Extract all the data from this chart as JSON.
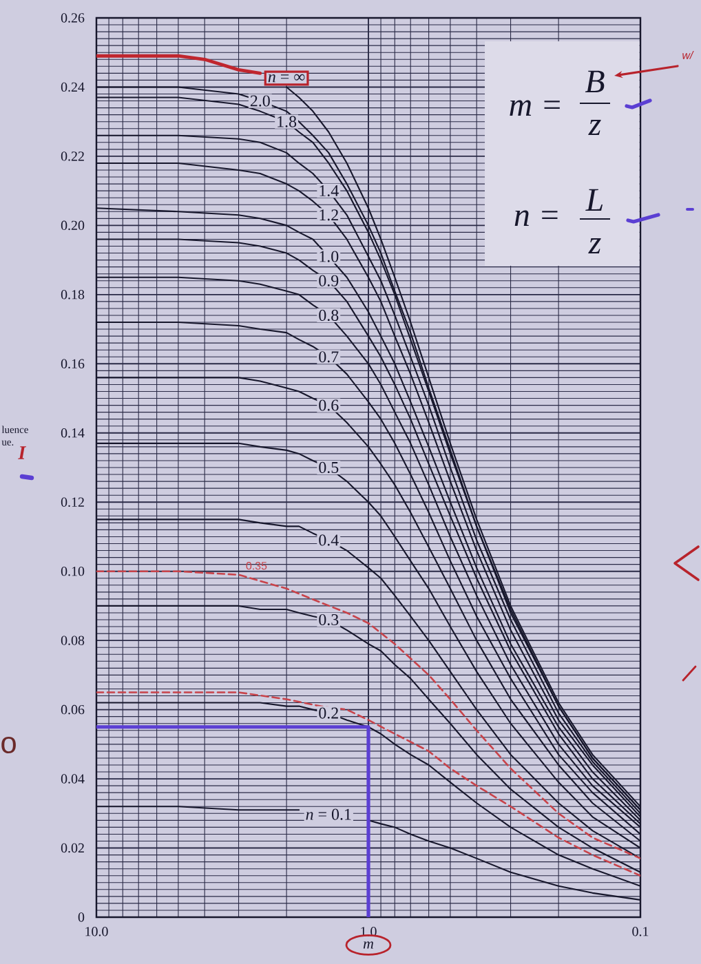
{
  "chart_data": {
    "type": "line",
    "xlabel": "m",
    "ylabel": "luence ue.",
    "x": [
      10,
      5,
      3,
      2.5,
      2,
      1.8,
      1.6,
      1.4,
      1.2,
      1.0,
      0.9,
      0.8,
      0.7,
      0.6,
      0.5,
      0.4,
      0.3,
      0.2,
      0.15,
      0.1
    ],
    "series": [
      {
        "name": "*n* = ∞",
        "color": "#17172c",
        "x": [
          2,
          1.8,
          1.6,
          1.4,
          1.2,
          1.0,
          0.9,
          0.8,
          0.7,
          0.6,
          0.5,
          0.4,
          0.3,
          0.2,
          0.15,
          0.1
        ],
        "values": [
          0.24,
          0.237,
          0.233,
          0.227,
          0.218,
          0.205,
          0.196,
          0.185,
          0.172,
          0.156,
          0.137,
          0.115,
          0.09,
          0.062,
          0.047,
          0.032
        ]
      },
      {
        "name": "2.0",
        "color": "#17172c",
        "values": [
          0.24,
          0.24,
          0.238,
          0.236,
          0.233,
          0.23,
          0.226,
          0.221,
          0.212,
          0.2,
          0.192,
          0.181,
          0.169,
          0.153,
          0.135,
          0.113,
          0.089,
          0.061,
          0.046,
          0.031
        ]
      },
      {
        "name": "1.8",
        "color": "#17172c",
        "values": [
          0.237,
          0.237,
          0.235,
          0.233,
          0.23,
          0.227,
          0.224,
          0.218,
          0.21,
          0.198,
          0.19,
          0.18,
          0.167,
          0.152,
          0.134,
          0.113,
          0.088,
          0.061,
          0.046,
          0.031
        ]
      },
      {
        "name": "1.4",
        "color": "#17172c",
        "values": [
          0.226,
          0.226,
          0.225,
          0.224,
          0.221,
          0.218,
          0.215,
          0.21,
          0.203,
          0.191,
          0.184,
          0.174,
          0.162,
          0.148,
          0.13,
          0.109,
          0.086,
          0.059,
          0.045,
          0.03
        ]
      },
      {
        "name": "1.2",
        "color": "#17172c",
        "values": [
          0.218,
          0.218,
          0.216,
          0.215,
          0.212,
          0.21,
          0.207,
          0.203,
          0.196,
          0.185,
          0.178,
          0.168,
          0.157,
          0.143,
          0.126,
          0.106,
          0.083,
          0.057,
          0.044,
          0.029
        ]
      },
      {
        "name": "1.0",
        "color": "#17172c",
        "values": [
          0.205,
          0.204,
          0.203,
          0.202,
          0.2,
          0.198,
          0.196,
          0.191,
          0.185,
          0.175,
          0.168,
          0.16,
          0.149,
          0.136,
          0.12,
          0.101,
          0.079,
          0.055,
          0.042,
          0.028
        ]
      },
      {
        "name": "0.9",
        "color": "#17172c",
        "values": [
          0.196,
          0.196,
          0.195,
          0.194,
          0.192,
          0.19,
          0.187,
          0.184,
          0.178,
          0.168,
          0.162,
          0.154,
          0.144,
          0.131,
          0.116,
          0.098,
          0.077,
          0.053,
          0.04,
          0.027
        ]
      },
      {
        "name": "0.8",
        "color": "#17172c",
        "values": [
          0.185,
          0.185,
          0.184,
          0.183,
          0.181,
          0.18,
          0.177,
          0.174,
          0.168,
          0.16,
          0.154,
          0.146,
          0.137,
          0.125,
          0.11,
          0.093,
          0.073,
          0.05,
          0.038,
          0.026
        ]
      },
      {
        "name": "0.7",
        "color": "#17172c",
        "values": [
          0.172,
          0.172,
          0.171,
          0.17,
          0.169,
          0.167,
          0.165,
          0.162,
          0.157,
          0.149,
          0.144,
          0.137,
          0.128,
          0.117,
          0.103,
          0.087,
          0.069,
          0.047,
          0.036,
          0.024
        ]
      },
      {
        "name": "0.6",
        "color": "#17172c",
        "values": [
          0.156,
          0.156,
          0.156,
          0.155,
          0.153,
          0.152,
          0.15,
          0.148,
          0.143,
          0.136,
          0.131,
          0.125,
          0.117,
          0.107,
          0.095,
          0.08,
          0.063,
          0.044,
          0.033,
          0.022
        ]
      },
      {
        "name": "0.5",
        "color": "#17172c",
        "values": [
          0.137,
          0.137,
          0.137,
          0.136,
          0.135,
          0.134,
          0.132,
          0.13,
          0.126,
          0.12,
          0.116,
          0.11,
          0.103,
          0.095,
          0.084,
          0.071,
          0.056,
          0.039,
          0.029,
          0.02
        ]
      },
      {
        "name": "0.4",
        "color": "#17172c",
        "values": [
          0.115,
          0.115,
          0.115,
          0.114,
          0.113,
          0.113,
          0.111,
          0.109,
          0.106,
          0.101,
          0.098,
          0.093,
          0.087,
          0.08,
          0.071,
          0.06,
          0.047,
          0.033,
          0.025,
          0.017
        ]
      },
      {
        "name": "0.3",
        "color": "#17172c",
        "values": [
          0.09,
          0.09,
          0.09,
          0.089,
          0.089,
          0.088,
          0.087,
          0.086,
          0.083,
          0.079,
          0.077,
          0.073,
          0.069,
          0.063,
          0.056,
          0.047,
          0.037,
          0.026,
          0.02,
          0.013
        ]
      },
      {
        "name": "0.2",
        "color": "#17172c",
        "values": [
          0.062,
          0.062,
          0.062,
          0.062,
          0.061,
          0.061,
          0.06,
          0.059,
          0.057,
          0.055,
          0.053,
          0.05,
          0.047,
          0.044,
          0.039,
          0.033,
          0.026,
          0.018,
          0.014,
          0.009
        ]
      },
      {
        "name": "*n* = 0.1",
        "color": "#17172c",
        "values": [
          0.032,
          0.032,
          0.031,
          0.031,
          0.031,
          0.031,
          null,
          null,
          null,
          0.028,
          0.027,
          0.026,
          0.024,
          0.022,
          0.02,
          0.017,
          0.013,
          0.009,
          0.007,
          0.005
        ]
      },
      {
        "color": "#c0262e",
        "x": [
          10,
          5,
          4,
          3,
          2.5
        ],
        "values": [
          0.249,
          0.249,
          0.248,
          0.245,
          0.244
        ]
      },
      {
        "name": "0.35",
        "color": "#c8434a",
        "line_style": "dashed",
        "x": [
          10,
          5,
          3,
          2,
          1.5,
          1.2,
          1.0,
          0.8,
          0.6,
          0.5,
          0.4,
          0.3,
          0.2,
          0.15,
          0.1
        ],
        "values": [
          0.1,
          0.1,
          0.099,
          0.095,
          0.091,
          0.088,
          0.085,
          0.079,
          0.07,
          0.063,
          0.054,
          0.043,
          0.03,
          0.023,
          0.017
        ]
      },
      {
        "color": "#c8434a",
        "line_style": "dashed",
        "x": [
          10,
          5,
          3,
          2,
          1.5,
          1.2,
          1.0,
          0.8,
          0.6,
          0.5,
          0.4,
          0.3,
          0.2,
          0.15,
          0.1
        ],
        "values": [
          0.065,
          0.065,
          0.065,
          0.063,
          0.061,
          0.06,
          0.057,
          0.053,
          0.048,
          0.043,
          0.038,
          0.032,
          0.023,
          0.018,
          0.012
        ]
      },
      {
        "color": "#5b3fd3",
        "x": [
          10,
          1,
          1
        ],
        "values": [
          0.055,
          0.055,
          0
        ]
      }
    ],
    "xlim": [
      10,
      0.1
    ],
    "ylim": [
      0,
      0.26
    ],
    "xticks": [
      {
        "value": 10,
        "label": "10.0"
      },
      {
        "value": 1,
        "label": "1.0"
      },
      0.1
    ],
    "yticks": [
      0,
      0.02,
      0.04,
      0.06,
      0.08,
      {
        "value": 0.1,
        "label": "0.10"
      },
      0.12,
      0.14,
      0.16,
      0.18,
      {
        "value": 0.2,
        "label": "0.20"
      },
      0.22,
      0.24,
      0.26
    ],
    "log": "x",
    "grid": true,
    "line_style": "solid",
    "annotations": [
      "m =",
      "B",
      "z",
      "n =",
      "L",
      "z",
      "I",
      "o",
      "w/"
    ]
  }
}
